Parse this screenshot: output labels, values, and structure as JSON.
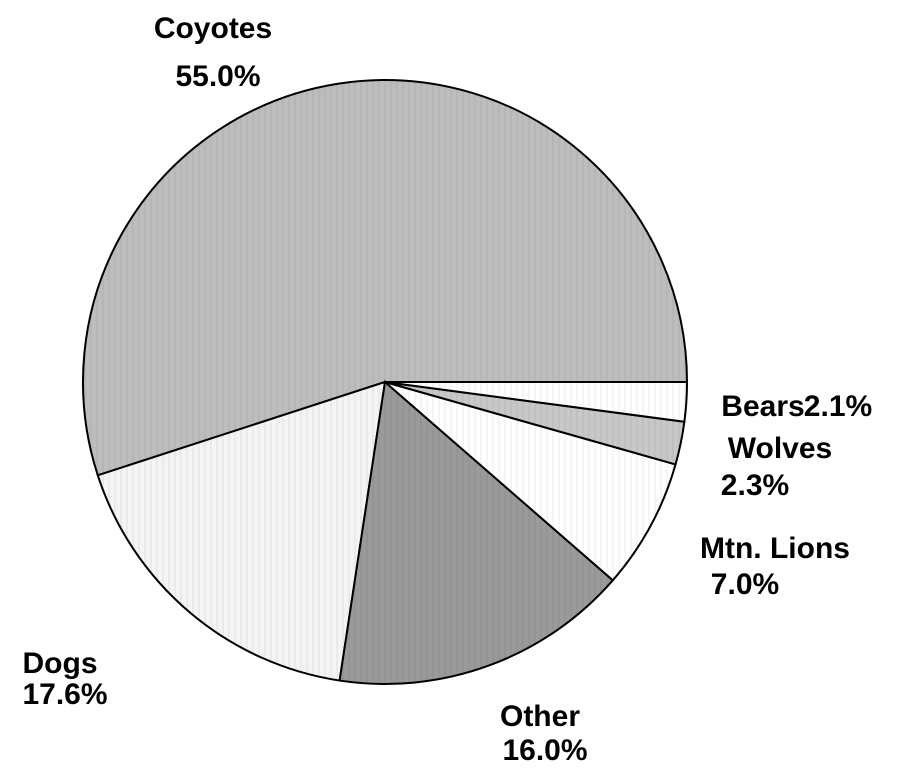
{
  "chart_data": {
    "type": "pie",
    "categories": [
      "Coyotes",
      "Dogs",
      "Other",
      "Mtn. Lions",
      "Wolves",
      "Bears"
    ],
    "values": [
      55.0,
      17.6,
      16.0,
      7.0,
      2.3,
      2.1
    ],
    "value_labels": [
      "55.0%",
      "17.6%",
      "16.0%",
      "7.0%",
      "2.3%",
      "2.1%"
    ],
    "colors": [
      "#bdbdbd",
      "#f4f4f4",
      "#9a9a9a",
      "#ffffff",
      "#c8c8c8",
      "#ffffff"
    ]
  }
}
